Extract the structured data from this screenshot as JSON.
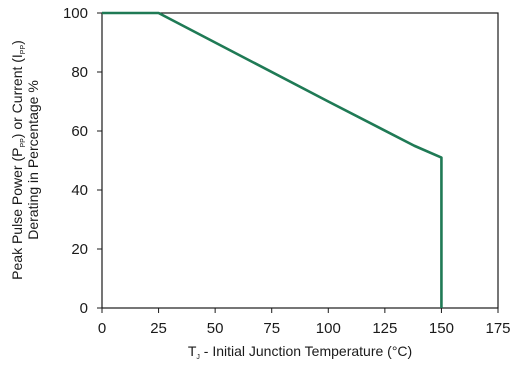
{
  "chart_data": {
    "type": "line",
    "xlabel": {
      "main": "T",
      "sub": "J",
      "rest": " - Initial Junction Temperature (°C)"
    },
    "ylabel": {
      "line1": {
        "a": "Peak Pulse Power (P",
        "sub1": "PP",
        "b": ") or Current (I",
        "sub2": "PP",
        "c": ")"
      },
      "line2": "Derating in Percentage %"
    },
    "xlim": [
      0,
      175
    ],
    "ylim": [
      0,
      100
    ],
    "xticks": [
      0,
      25,
      50,
      75,
      100,
      125,
      150,
      175
    ],
    "yticks": [
      0,
      20,
      40,
      60,
      80,
      100
    ],
    "grid": false,
    "series": [
      {
        "color": "#1f7a55",
        "x": [
          0,
          25,
          100,
          138,
          150,
          150
        ],
        "y": [
          100,
          100,
          70,
          55,
          51,
          0
        ]
      }
    ]
  }
}
